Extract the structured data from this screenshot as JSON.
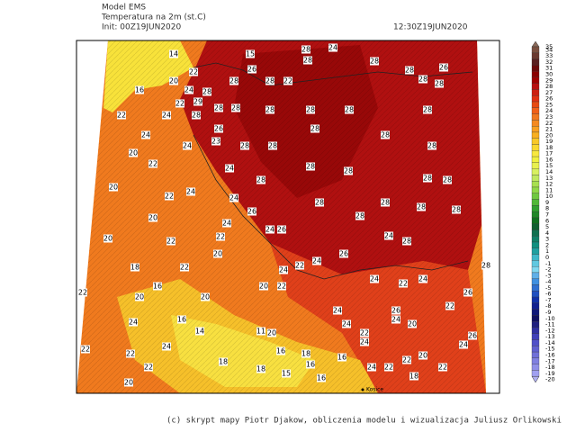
{
  "header": {
    "model": "Model EMS",
    "field": "Temperatura na 2m (st.C)",
    "init": "Init: 00Z19JUN2020",
    "valid": "12:30Z19JUN2020"
  },
  "footer": "(c) skrypt mapy Piotr Djakow, obliczenia modelu i wizualizacja Juliusz Orlikowski",
  "city": "Kosice",
  "colorbar": {
    "levels": [
      35,
      34,
      33,
      32,
      31,
      30,
      29,
      28,
      27,
      26,
      25,
      24,
      23,
      22,
      21,
      20,
      19,
      18,
      17,
      16,
      15,
      14,
      13,
      12,
      11,
      10,
      9,
      8,
      7,
      6,
      5,
      4,
      3,
      2,
      1,
      0,
      -1,
      -2,
      -3,
      -4,
      -5,
      -6,
      -7,
      -8,
      -9,
      -10,
      -11,
      -12,
      -13,
      -14,
      -15,
      -16,
      -17,
      -18,
      -19,
      -20
    ],
    "colors": [
      "#8a6a5a",
      "#7a5040",
      "#6a3a30",
      "#5a2020",
      "#6a0a0a",
      "#8b0000",
      "#a00000",
      "#b81010",
      "#cc2010",
      "#e03010",
      "#e84a10",
      "#f06018",
      "#f07820",
      "#f48a20",
      "#f8a020",
      "#f8b020",
      "#f8c828",
      "#f8d830",
      "#f8e840",
      "#f0f040",
      "#e8f050",
      "#d8f060",
      "#c0e860",
      "#a8e050",
      "#90d848",
      "#70c840",
      "#50b838",
      "#30a030",
      "#208828",
      "#107020",
      "#106030",
      "#107050",
      "#108068",
      "#109080",
      "#20a0a0",
      "#40b8c8",
      "#60c8e0",
      "#80d8f0",
      "#60b0e8",
      "#4090e0",
      "#3070d0",
      "#2050c0",
      "#1030a8",
      "#102090",
      "#101878",
      "#101060",
      "#202080",
      "#3030a0",
      "#4040b8",
      "#5050c8",
      "#6060d0",
      "#7070d8",
      "#8080e0",
      "#9090e8",
      "#a0a0f0",
      "#b0b0f0"
    ]
  },
  "map_labels": [
    28,
    24,
    14,
    15,
    22,
    26,
    28,
    28,
    26,
    20,
    24,
    28,
    28,
    28,
    22,
    28,
    28,
    28,
    16,
    22,
    29,
    28,
    28,
    28,
    28,
    28,
    28,
    22,
    24,
    28,
    26,
    28,
    28,
    24,
    23,
    28,
    24,
    20,
    28,
    28,
    22,
    24,
    28,
    28,
    20,
    22,
    24,
    28,
    28,
    28,
    24,
    28,
    28,
    28,
    26,
    20,
    28,
    28,
    24,
    24,
    26,
    24,
    28,
    20,
    22,
    22,
    26,
    20,
    18,
    22,
    22,
    24,
    28,
    24,
    24,
    22,
    24,
    22,
    16,
    20,
    22,
    20,
    26,
    20,
    24,
    26,
    22,
    16,
    24,
    24,
    24,
    20,
    14,
    11,
    20,
    22,
    24,
    26,
    22,
    22,
    18,
    24,
    24,
    16,
    16,
    20,
    18,
    22,
    22,
    16,
    24,
    22,
    22,
    18,
    15,
    20,
    18,
    16
  ]
}
